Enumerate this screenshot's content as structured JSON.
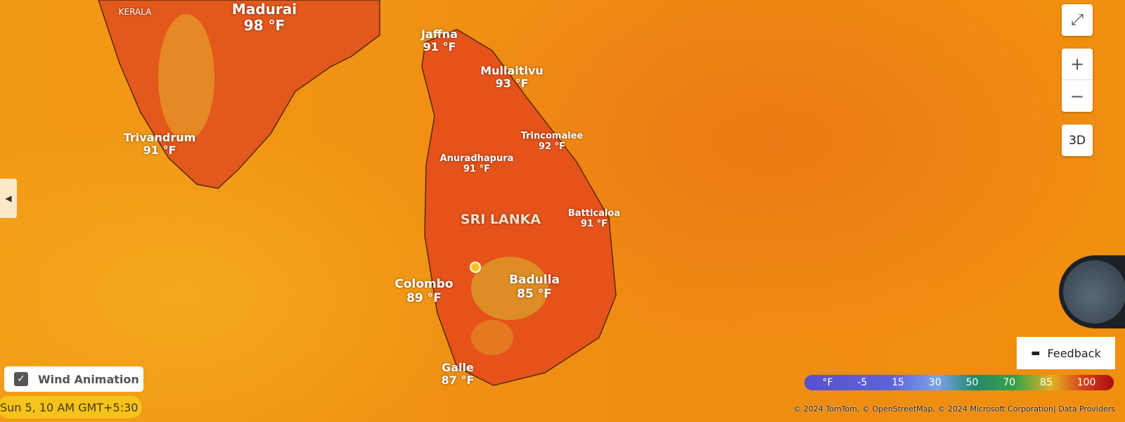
{
  "map": {
    "region_labels": [
      {
        "name": "KERALA"
      },
      {
        "name": "SRI LANKA"
      }
    ],
    "cities": [
      {
        "name": "Madurai",
        "temp": "98 °F"
      },
      {
        "name": "Trivandrum",
        "temp": "91 °F"
      },
      {
        "name": "Jaffna",
        "temp": "91 °F"
      },
      {
        "name": "Mullaitivu",
        "temp": "93 °F"
      },
      {
        "name": "Trincomalee",
        "temp": "92 °F"
      },
      {
        "name": "Anuradhapura",
        "temp": "91 °F"
      },
      {
        "name": "Batticaloa",
        "temp": "91 °F"
      },
      {
        "name": "Colombo",
        "temp": "89 °F"
      },
      {
        "name": "Badulla",
        "temp": "85 °F"
      },
      {
        "name": "Galle",
        "temp": "87 °F"
      }
    ]
  },
  "controls": {
    "fullscreen_icon": "expand-arrows-icon",
    "zoom_in": "+",
    "zoom_out": "−",
    "three_d": "3D"
  },
  "feedback": {
    "label": "Feedback",
    "icon": "comment-icon"
  },
  "legend": {
    "unit": "°F",
    "values": [
      "-5",
      "15",
      "30",
      "50",
      "70",
      "85",
      "100"
    ]
  },
  "copyright": "© 2024 TomTom,  © OpenStreetMap, © 2024 Microsoft Corporation|  Data Providers",
  "wind_animation": {
    "label": "Wind Animation",
    "checked": true
  },
  "timestamp": "Sun 5, 10 AM GMT+5:30"
}
